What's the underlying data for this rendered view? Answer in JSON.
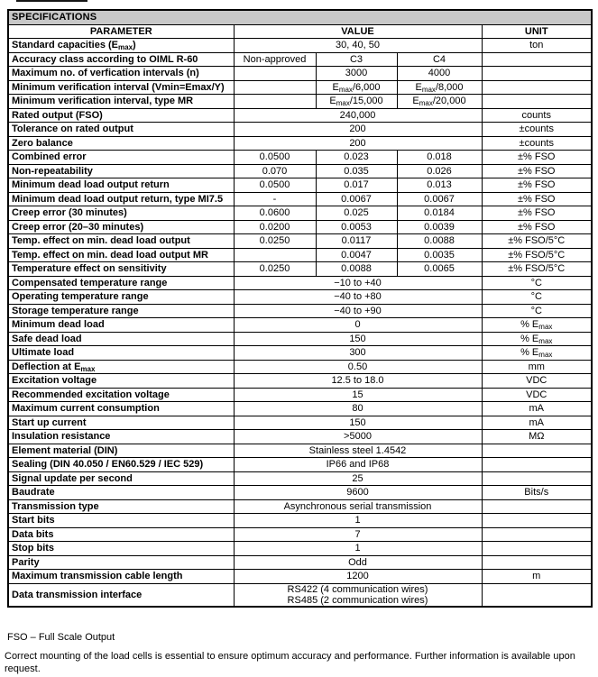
{
  "colors": {
    "header_bar": "#c8c8c8",
    "border": "#000000",
    "text": "#000000",
    "background": "#ffffff"
  },
  "header": {
    "title": "SPECIFICATIONS"
  },
  "columns": {
    "parameter": "PARAMETER",
    "value": "VALUE",
    "unit": "UNIT"
  },
  "table": {
    "rows": [
      {
        "param": "Standard capacities (E{max})",
        "value": "30, 40, 50",
        "unit": "ton"
      },
      {
        "param": "Accuracy class according to OIML R-60",
        "values": [
          "Non-approved",
          "C3",
          "C4"
        ],
        "unit": ""
      },
      {
        "param": "Maximum no. of verfication intervals (n)",
        "values": [
          "",
          "3000",
          "4000"
        ],
        "unit": ""
      },
      {
        "param": "Minimum verification interval (Vmin=Emax/Y)",
        "values": [
          "",
          "E{max}/6,000",
          "E{max}/8,000"
        ],
        "unit": ""
      },
      {
        "param": "Minimum verification interval, type MR",
        "values": [
          "",
          "E{max}/15,000",
          "E{max}/20,000"
        ],
        "unit": ""
      },
      {
        "param": "Rated output (FSO)",
        "value": "240,000",
        "unit": "counts"
      },
      {
        "param": "Tolerance on rated output",
        "value": "200",
        "unit": "±counts"
      },
      {
        "param": "Zero balance",
        "value": "200",
        "unit": "±counts"
      },
      {
        "param": "Combined error",
        "values": [
          "0.0500",
          "0.023",
          "0.018"
        ],
        "unit": "±% FSO"
      },
      {
        "param": "Non-repeatability",
        "values": [
          "0.070",
          "0.035",
          "0.026"
        ],
        "unit": "±% FSO"
      },
      {
        "param": "Minimum dead load output return",
        "values": [
          "0.0500",
          "0.017",
          "0.013"
        ],
        "unit": "±% FSO"
      },
      {
        "param": "Minimum dead load output return, type MI7.5",
        "values": [
          "-",
          "0.0067",
          "0.0067"
        ],
        "unit": "±% FSO"
      },
      {
        "param": "Creep error (30 minutes)",
        "values": [
          "0.0600",
          "0.025",
          "0.0184"
        ],
        "unit": "±% FSO"
      },
      {
        "param": "Creep error (20–30 minutes)",
        "values": [
          "0.0200",
          "0.0053",
          "0.0039"
        ],
        "unit": "±% FSO"
      },
      {
        "param": "Temp. effect on min. dead load output",
        "values": [
          "0.0250",
          "0.0117",
          "0.0088"
        ],
        "unit": "±% FSO/5°C"
      },
      {
        "param": "Temp. effect on min. dead load output MR",
        "values": [
          "",
          "0.0047",
          "0.0035"
        ],
        "unit": "±% FSO/5°C"
      },
      {
        "param": "Temperature effect on sensitivity",
        "values": [
          "0.0250",
          "0.0088",
          "0.0065"
        ],
        "unit": "±% FSO/5°C"
      },
      {
        "param": "Compensated temperature range",
        "value": "−10 to +40",
        "unit": "°C"
      },
      {
        "param": "Operating temperature range",
        "value": "−40 to +80",
        "unit": "°C"
      },
      {
        "param": "Storage temperature range",
        "value": "−40 to +90",
        "unit": "°C"
      },
      {
        "param": "Minimum dead load",
        "value": "0",
        "unit": "% E{max}"
      },
      {
        "param": "Safe dead load",
        "value": "150",
        "unit": "% E{max}"
      },
      {
        "param": "Ultimate load",
        "value": "300",
        "unit": "% E{max}"
      },
      {
        "param": "Deflection at E{max}",
        "value": "0.50",
        "unit": "mm"
      },
      {
        "param": "Excitation voltage",
        "value": "12.5 to 18.0",
        "unit": "VDC"
      },
      {
        "param": "Recommended excitation voltage",
        "value": "15",
        "unit": "VDC"
      },
      {
        "param": "Maximum current consumption",
        "value": "80",
        "unit": "mA"
      },
      {
        "param": "Start up current",
        "value": "150",
        "unit": "mA"
      },
      {
        "param": "Insulation resistance",
        "value": ">5000",
        "unit": "MΩ"
      },
      {
        "param": "Element material (DIN)",
        "value": "Stainless steel 1.4542",
        "unit": ""
      },
      {
        "param": "Sealing (DIN 40.050 / EN60.529 / IEC 529)",
        "value": "IP66 and IP68",
        "unit": ""
      },
      {
        "param": "Signal update per second",
        "value": "25",
        "unit": ""
      },
      {
        "param": "Baudrate",
        "value": "9600",
        "unit": "Bits/s"
      },
      {
        "param": "Transmission type",
        "value": "Asynchronous serial transmission",
        "unit": ""
      },
      {
        "param": "Start bits",
        "value": "1",
        "unit": ""
      },
      {
        "param": "Data bits",
        "value": "7",
        "unit": ""
      },
      {
        "param": "Stop bits",
        "value": "1",
        "unit": ""
      },
      {
        "param": "Parity",
        "value": "Odd",
        "unit": ""
      },
      {
        "param": "Maximum transmission cable length",
        "value": "1200",
        "unit": "m"
      },
      {
        "param": "Data transmission interface",
        "value": "RS422 (4 communication wires)\nRS485 (2 communication wires)",
        "unit": "",
        "multiline": true
      }
    ]
  },
  "footer": {
    "fso_note": "FSO – Full Scale Output",
    "mounting_note": "Correct mounting of the load cells is essential to ensure optimum accuracy and performance. Further information is available upon request."
  }
}
